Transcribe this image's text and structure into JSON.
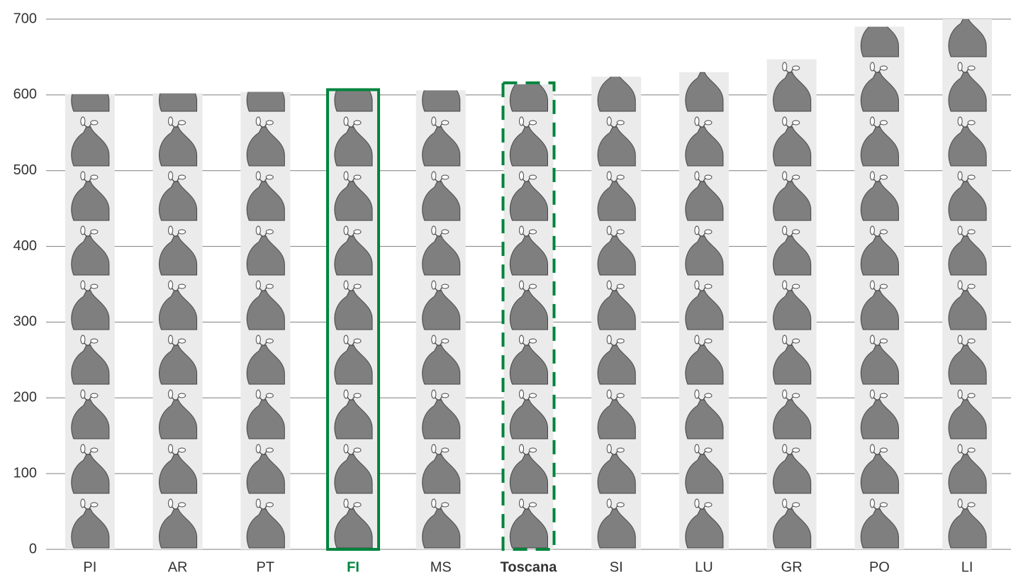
{
  "chart_data": {
    "type": "bar",
    "categories": [
      "PI",
      "AR",
      "PT",
      "FI",
      "MS",
      "Toscana",
      "SI",
      "LU",
      "GR",
      "PO",
      "LI"
    ],
    "values": [
      601,
      602,
      604,
      605,
      606,
      614,
      624,
      630,
      647,
      690,
      700
    ],
    "color": "#ebebeb",
    "icon_color": "#7f7f7f",
    "ylim": [
      0,
      700
    ],
    "yticks": [
      0,
      100,
      200,
      300,
      400,
      500,
      600,
      700
    ],
    "grid": true,
    "highlights": [
      {
        "category": "FI",
        "border": "solid",
        "color": "#00843d",
        "label_color": "#00843d"
      },
      {
        "category": "Toscana",
        "border": "dashed",
        "color": "#00843d",
        "label_color": "#333333"
      }
    ]
  }
}
